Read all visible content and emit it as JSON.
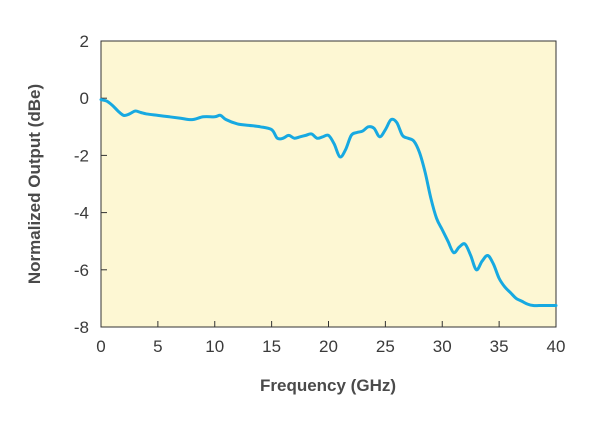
{
  "chart_data": {
    "type": "line",
    "xlabel": "Frequency (GHz)",
    "ylabel": "Normalized Output (dBe)",
    "xlim": [
      0,
      40
    ],
    "ylim": [
      -8,
      2
    ],
    "x_ticks": [
      0,
      5,
      10,
      15,
      20,
      25,
      30,
      35,
      40
    ],
    "y_ticks": [
      2,
      0,
      -2,
      -4,
      -6,
      -8
    ],
    "grid": false,
    "plot_background": "#fdf7d3",
    "line_color": "#17a9e1",
    "series": [
      {
        "x": [
          0,
          0.5,
          1,
          1.5,
          2,
          2.5,
          3,
          3.5,
          4,
          5,
          6,
          7,
          8,
          9,
          10,
          10.5,
          11,
          12,
          13,
          14,
          15,
          15.5,
          16,
          16.5,
          17,
          17.5,
          18,
          18.5,
          19,
          19.5,
          20,
          20.5,
          21,
          21.5,
          22,
          22.5,
          23,
          23.5,
          24,
          24.5,
          25,
          25.5,
          26,
          26.5,
          27,
          27.5,
          28,
          28.5,
          29,
          29.5,
          30,
          30.5,
          31,
          31.5,
          32,
          32.5,
          33,
          33.5,
          34,
          34.5,
          35,
          35.5,
          36,
          36.5,
          37,
          37.5,
          38,
          38.5,
          39,
          39.5,
          40
        ],
        "y": [
          -0.05,
          -0.1,
          -0.25,
          -0.45,
          -0.6,
          -0.55,
          -0.45,
          -0.5,
          -0.55,
          -0.6,
          -0.65,
          -0.7,
          -0.75,
          -0.65,
          -0.65,
          -0.6,
          -0.75,
          -0.9,
          -0.95,
          -1.0,
          -1.1,
          -1.4,
          -1.4,
          -1.3,
          -1.4,
          -1.35,
          -1.3,
          -1.25,
          -1.4,
          -1.35,
          -1.3,
          -1.6,
          -2.05,
          -1.8,
          -1.3,
          -1.2,
          -1.15,
          -1.0,
          -1.05,
          -1.35,
          -1.1,
          -0.75,
          -0.85,
          -1.3,
          -1.4,
          -1.5,
          -1.9,
          -2.6,
          -3.5,
          -4.2,
          -4.6,
          -5.0,
          -5.4,
          -5.2,
          -5.1,
          -5.5,
          -6.0,
          -5.7,
          -5.5,
          -5.8,
          -6.3,
          -6.6,
          -6.8,
          -7.0,
          -7.1,
          -7.2,
          -7.25,
          -7.25,
          -7.25,
          -7.25,
          -7.25
        ]
      }
    ]
  }
}
